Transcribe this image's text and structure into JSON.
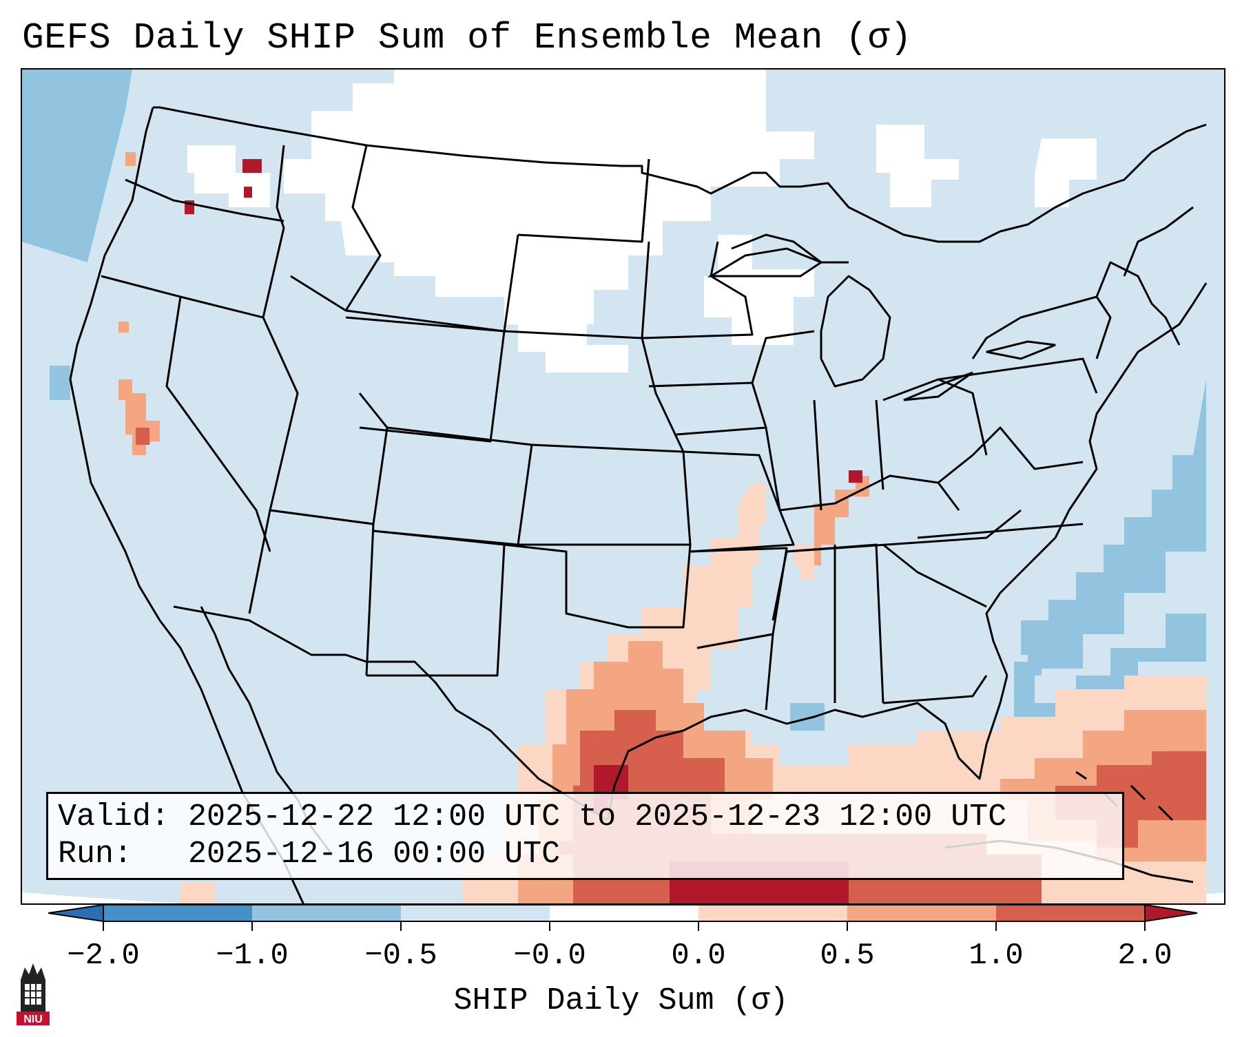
{
  "title": "GEFS Daily SHIP Sum of Ensemble Mean (σ)",
  "info": {
    "valid_label": "Valid:",
    "valid_value": "2025-12-22 12:00 UTC to 2025-12-23 12:00 UTC",
    "run_label": "Run:",
    "run_value": "2025-12-16 00:00 UTC"
  },
  "colorbar": {
    "label": "SHIP Daily Sum (σ)",
    "ticks": [
      "−2.0",
      "−1.0",
      "−0.5",
      "−0.0",
      "0.0",
      "0.5",
      "1.0",
      "2.0"
    ],
    "bins": [
      {
        "range": "< -2.0",
        "color": "#2c6eb3"
      },
      {
        "range": "-2.0 to -1.0",
        "color": "#4391c7"
      },
      {
        "range": "-1.0 to -0.5",
        "color": "#92c4df"
      },
      {
        "range": "-0.5 to -0.0",
        "color": "#d2e5f1"
      },
      {
        "range": "-0.0 to 0.0",
        "color": "#ffffff"
      },
      {
        "range": "0.0 to 0.5",
        "color": "#fcd7c4"
      },
      {
        "range": "0.5 to 1.0",
        "color": "#f4a582"
      },
      {
        "range": "1.0 to 2.0",
        "color": "#d6604d"
      },
      {
        "range": "> 2.0",
        "color": "#b2182b"
      }
    ]
  },
  "logo": {
    "text": "NIU",
    "name": "niu-logo"
  }
}
